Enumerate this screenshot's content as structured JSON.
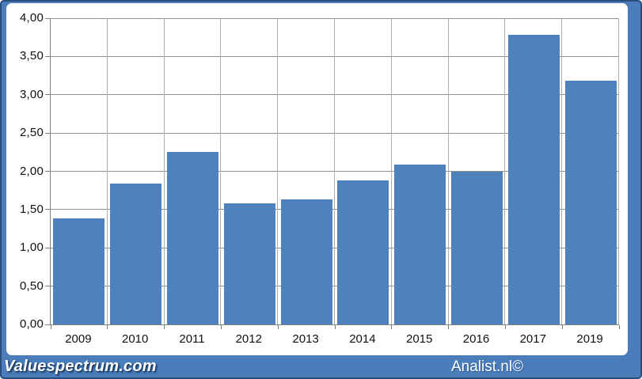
{
  "chart_data": {
    "type": "bar",
    "categories": [
      "2009",
      "2010",
      "2011",
      "2012",
      "2013",
      "2014",
      "2015",
      "2016",
      "2017",
      "2019"
    ],
    "values": [
      1.39,
      1.84,
      2.25,
      1.58,
      1.63,
      1.88,
      2.09,
      2.0,
      3.78,
      3.18
    ],
    "title": "",
    "xlabel": "",
    "ylabel": "",
    "ylim": [
      0,
      4
    ],
    "ytick_values": [
      0,
      0.5,
      1,
      1.5,
      2,
      2.5,
      3,
      3.5,
      4
    ],
    "ytick_labels": [
      "0,00",
      "0,50",
      "1,00",
      "1,50",
      "2,00",
      "2,50",
      "3,00",
      "3,50",
      "4,00"
    ],
    "grid": "both",
    "legend": "none",
    "bar_color": "#4f81bd"
  },
  "footer": {
    "brand": "Valuespectrum.com",
    "credit": "Analist.nl©"
  },
  "colors": {
    "background": "#4b7dbb",
    "panel": "#ffffff",
    "bar": "#4f81bd",
    "hgrid": "#8c8c8c",
    "vgrid": "#aeaeae",
    "axis": "#7f7f7f",
    "label": "#111111",
    "footer_text": "#ffffff"
  }
}
